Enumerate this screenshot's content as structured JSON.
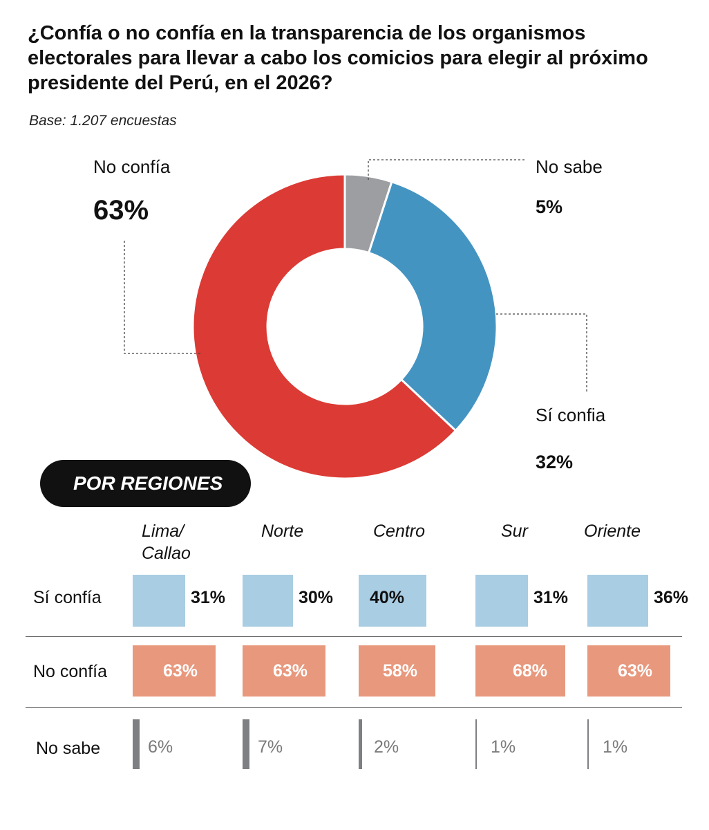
{
  "title": "¿Confía o no confía en la transparencia de los organismos electorales para llevar a cabo los comicios para elegir al próximo presidente del Perú, en el 2026?",
  "subtitle": "Base: 1.207 encuestas",
  "colors": {
    "no_confia": "#dc3a34",
    "si_confia": "#4494c2",
    "no_sabe": "#9d9ea2",
    "bar_si": "#a9cde3",
    "bar_no": "#e8987d",
    "bar_ns": "#7e7f83"
  },
  "chart_data": [
    {
      "type": "pie",
      "variant": "donut",
      "title": "¿Confía o no confía en la transparencia de los organismos electorales para llevar a cabo los comicios para elegir al próximo presidente del Perú, en el 2026?",
      "subtitle": "Base: 1.207 encuestas",
      "slices": [
        {
          "label": "No sabe",
          "value": 5,
          "display": "5%"
        },
        {
          "label": "Sí confia",
          "value": 32,
          "display": "32%"
        },
        {
          "label": "No confía",
          "value": 63,
          "display": "63%"
        }
      ]
    },
    {
      "type": "table",
      "title": "POR REGIONES",
      "regions": [
        "Lima/\nCallao",
        "Norte",
        "Centro",
        "Sur",
        "Oriente"
      ],
      "series": [
        {
          "name": "Sí confía",
          "values": [
            31,
            30,
            40,
            31,
            36
          ],
          "labels": [
            "31%",
            "30%",
            "40%",
            "31%",
            "36%"
          ]
        },
        {
          "name": "No confía",
          "values": [
            63,
            63,
            58,
            68,
            63
          ],
          "labels": [
            "63%",
            "63%",
            "58%",
            "68%",
            "63%"
          ]
        },
        {
          "name": "No sabe",
          "values": [
            6,
            7,
            2,
            1,
            1
          ],
          "labels": [
            "6%",
            "7%",
            "2%",
            "1%",
            "1%"
          ]
        }
      ]
    }
  ]
}
